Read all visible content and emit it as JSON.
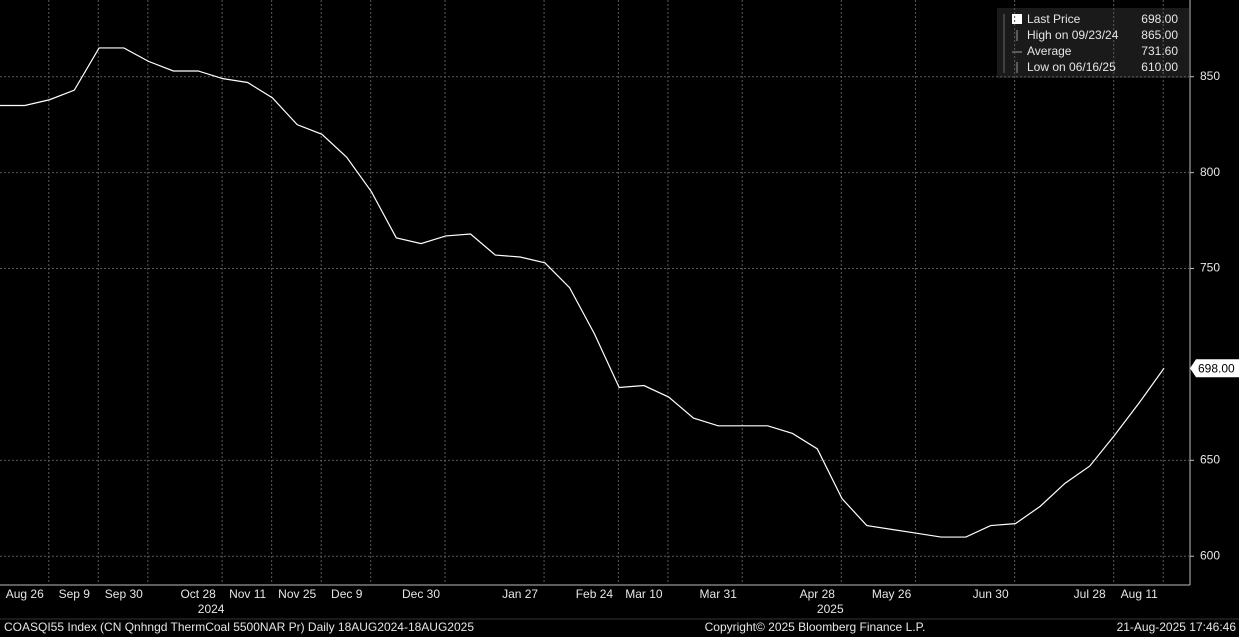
{
  "chart_data": {
    "type": "line",
    "categories": [
      null,
      "Aug 26",
      null,
      "Sep 9",
      null,
      "Sep 30",
      null,
      null,
      "Oct 28",
      null,
      "Nov 11",
      null,
      "Nov 25",
      null,
      "Dec 9",
      null,
      null,
      "Dec 30",
      null,
      null,
      null,
      "Jan 27",
      null,
      null,
      "Feb 24",
      null,
      "Mar 10",
      null,
      null,
      "Mar 31",
      null,
      null,
      null,
      "Apr 28",
      null,
      null,
      "May 26",
      null,
      null,
      null,
      "Jun 30",
      null,
      null,
      null,
      "Jul 28",
      null,
      "Aug 11",
      null
    ],
    "series": [
      {
        "name": "Last Price",
        "color": "#ffffff",
        "values": [
          835,
          835,
          838,
          843,
          865,
          865,
          858,
          853,
          853,
          849,
          847,
          839,
          825,
          820,
          808,
          790,
          766,
          763,
          767,
          768,
          757,
          756,
          753,
          740,
          716,
          688,
          689,
          683,
          672,
          668,
          668,
          668,
          664,
          656,
          630,
          616,
          614,
          612,
          610,
          610,
          616,
          617,
          626,
          638,
          647,
          663,
          680,
          698
        ]
      }
    ],
    "years": [
      "2024",
      "2025"
    ],
    "ylim": [
      585,
      890
    ],
    "yticks": [
      600,
      650,
      750,
      800,
      850
    ],
    "grid": true,
    "last_label": "698.00",
    "legend": [
      {
        "label": "Last Price",
        "value": "698.00"
      },
      {
        "label": "High on 09/23/24",
        "value": "865.00"
      },
      {
        "label": "Average",
        "value": "731.60"
      },
      {
        "label": "Low on 06/16/25",
        "value": "610.00"
      }
    ],
    "footer": {
      "left": "COASQI55 Index (CN Qnhngd ThermCoal 5500NAR Pr)  Daily 18AUG2024-18AUG2025",
      "center": "Copyright© 2025 Bloomberg Finance L.P.",
      "right": "21-Aug-2025 17:46:46"
    }
  }
}
